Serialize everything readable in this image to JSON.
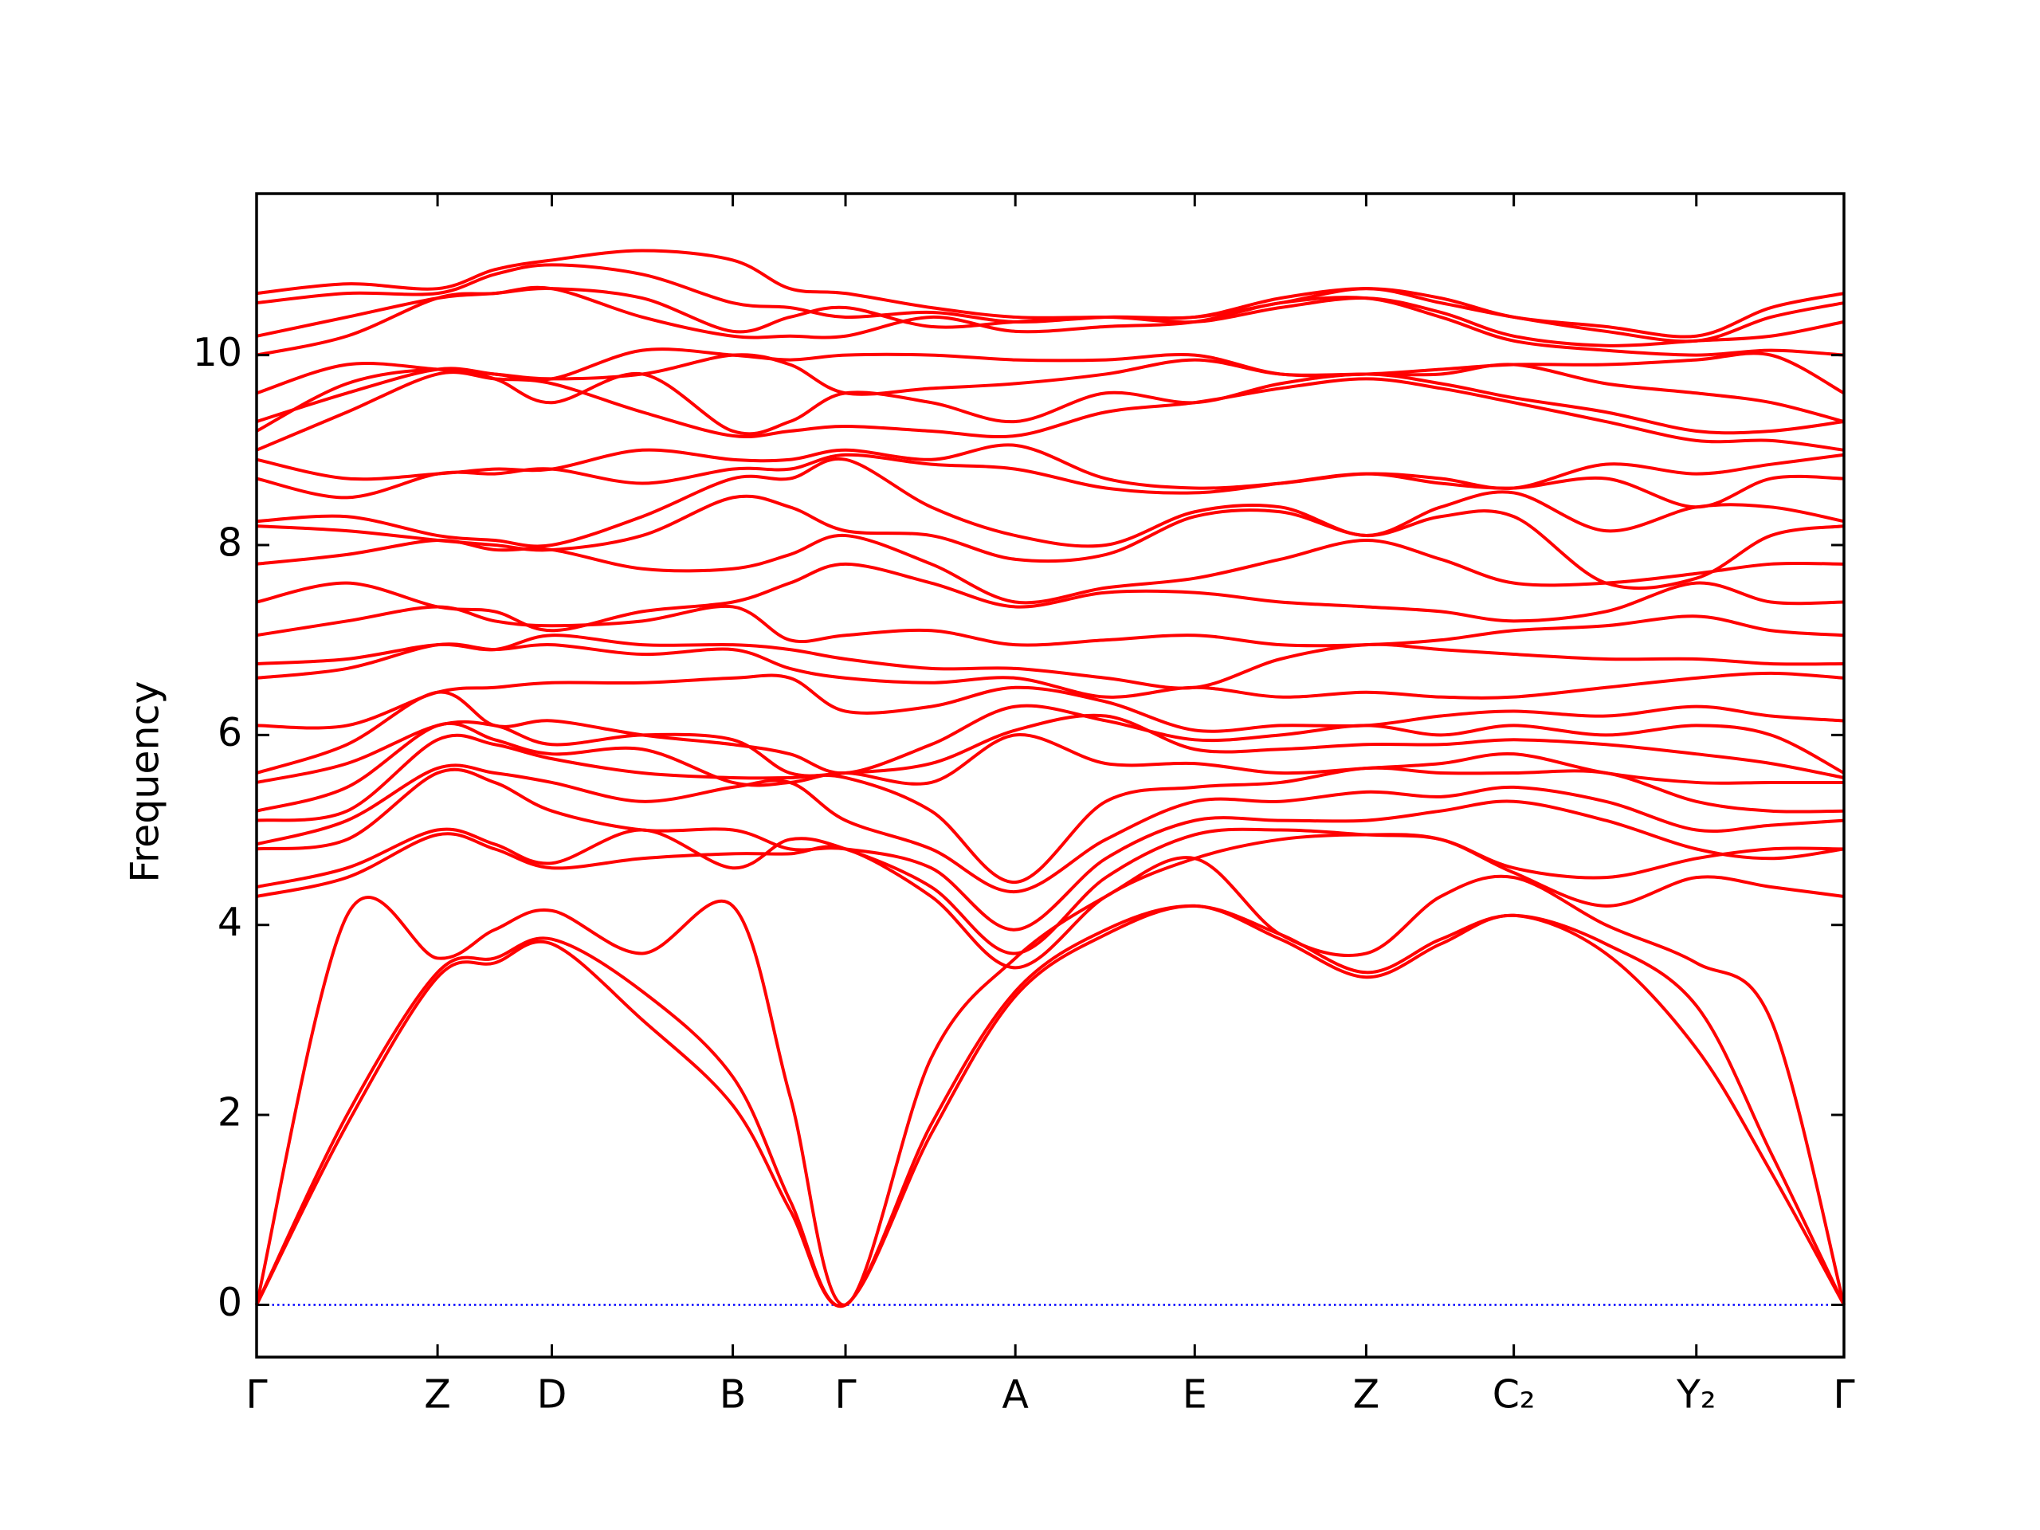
{
  "chart_data": {
    "type": "line",
    "y_label": "Frequency",
    "color": "#ff0000",
    "zero_line": {
      "value": 0,
      "color": "#0000ff"
    },
    "xlim": [
      0,
      1
    ],
    "ylim": [
      -0.55,
      11.7
    ],
    "yticks": [
      0,
      2,
      4,
      6,
      8,
      10
    ],
    "xticks": [
      {
        "value": 0,
        "label": "Γ"
      },
      {
        "value": 0.114,
        "label": "Z"
      },
      {
        "value": 0.186,
        "label": "D"
      },
      {
        "value": 0.3,
        "label": "B"
      },
      {
        "value": 0.371,
        "label": "Γ"
      },
      {
        "value": 0.478,
        "label": "A"
      },
      {
        "value": 0.591,
        "label": "E"
      },
      {
        "value": 0.699,
        "label": "Z"
      },
      {
        "value": 0.792,
        "label": "C₂"
      },
      {
        "value": 0.907,
        "label": "Y₂"
      },
      {
        "value": 1,
        "label": "Γ"
      }
    ],
    "x": [
      0,
      0.057,
      0.114,
      0.15,
      0.186,
      0.243,
      0.3,
      0.336,
      0.371,
      0.425,
      0.478,
      0.535,
      0.591,
      0.645,
      0.699,
      0.746,
      0.792,
      0.85,
      0.907,
      0.954,
      1
    ],
    "series": [
      {
        "values": [
          0,
          1.9,
          3.45,
          3.6,
          3.8,
          3.0,
          2.1,
          1.0,
          0,
          1.8,
          3.25,
          3.9,
          4.2,
          3.85,
          3.45,
          3.8,
          4.1,
          3.7,
          2.7,
          1.4,
          0
        ]
      },
      {
        "values": [
          0,
          2.0,
          3.5,
          3.65,
          3.85,
          3.3,
          2.4,
          1.1,
          0,
          1.9,
          3.3,
          3.95,
          4.2,
          3.9,
          3.5,
          3.85,
          4.1,
          3.8,
          3.15,
          1.6,
          0
        ]
      },
      {
        "values": [
          0,
          4.1,
          3.65,
          3.95,
          4.15,
          3.7,
          4.2,
          2.2,
          0,
          2.6,
          3.65,
          4.3,
          4.7,
          3.9,
          3.7,
          4.3,
          4.5,
          4.0,
          3.6,
          3.0,
          0
        ]
      },
      {
        "values": [
          4.3,
          4.5,
          4.95,
          4.8,
          4.6,
          4.7,
          4.75,
          4.75,
          4.8,
          4.3,
          3.55,
          4.3,
          4.7,
          4.9,
          4.95,
          4.9,
          4.55,
          4.2,
          4.5,
          4.4,
          4.3
        ]
      },
      {
        "values": [
          4.4,
          4.6,
          5.0,
          4.85,
          4.65,
          5.0,
          4.6,
          4.9,
          4.8,
          4.4,
          3.7,
          4.5,
          4.95,
          5.0,
          4.95,
          4.9,
          4.6,
          4.5,
          4.7,
          4.8,
          4.8
        ]
      },
      {
        "values": [
          4.8,
          4.9,
          5.6,
          5.5,
          5.2,
          5.0,
          5.0,
          4.8,
          4.8,
          4.6,
          3.95,
          4.7,
          5.1,
          5.1,
          5.1,
          5.2,
          5.3,
          5.1,
          4.8,
          4.7,
          4.8
        ]
      },
      {
        "values": [
          4.85,
          5.1,
          5.65,
          5.6,
          5.5,
          5.3,
          5.45,
          5.5,
          5.1,
          4.8,
          4.35,
          4.9,
          5.3,
          5.3,
          5.4,
          5.35,
          5.45,
          5.3,
          5.0,
          5.05,
          5.1
        ]
      },
      {
        "values": [
          5.1,
          5.2,
          5.95,
          5.9,
          5.75,
          5.6,
          5.55,
          5.55,
          5.55,
          5.2,
          4.45,
          5.3,
          5.45,
          5.5,
          5.65,
          5.6,
          5.6,
          5.6,
          5.3,
          5.2,
          5.2
        ]
      },
      {
        "values": [
          5.2,
          5.45,
          6.1,
          5.95,
          5.8,
          5.85,
          5.5,
          5.5,
          5.6,
          5.5,
          6.0,
          5.7,
          5.7,
          5.6,
          5.65,
          5.7,
          5.8,
          5.6,
          5.5,
          5.5,
          5.5
        ]
      },
      {
        "values": [
          5.5,
          5.7,
          6.1,
          6.1,
          5.9,
          6.0,
          5.95,
          5.6,
          5.6,
          5.7,
          6.05,
          6.2,
          5.85,
          5.85,
          5.9,
          5.9,
          5.95,
          5.9,
          5.8,
          5.7,
          5.55
        ]
      },
      {
        "values": [
          5.6,
          5.9,
          6.45,
          6.1,
          6.15,
          6.0,
          5.9,
          5.8,
          5.6,
          5.9,
          6.3,
          6.15,
          5.95,
          6.0,
          6.1,
          6.0,
          6.1,
          6.0,
          6.1,
          6.0,
          5.6
        ]
      },
      {
        "values": [
          6.1,
          6.1,
          6.45,
          6.5,
          6.55,
          6.55,
          6.6,
          6.6,
          6.25,
          6.3,
          6.5,
          6.35,
          6.05,
          6.1,
          6.1,
          6.2,
          6.25,
          6.2,
          6.3,
          6.2,
          6.15
        ]
      },
      {
        "values": [
          6.6,
          6.7,
          6.95,
          6.9,
          6.95,
          6.85,
          6.9,
          6.7,
          6.6,
          6.55,
          6.6,
          6.4,
          6.5,
          6.4,
          6.45,
          6.4,
          6.4,
          6.5,
          6.6,
          6.65,
          6.6
        ]
      },
      {
        "values": [
          6.75,
          6.8,
          6.95,
          6.9,
          7.05,
          6.95,
          6.95,
          6.9,
          6.8,
          6.7,
          6.7,
          6.6,
          6.5,
          6.8,
          6.95,
          6.9,
          6.85,
          6.8,
          6.8,
          6.75,
          6.75
        ]
      },
      {
        "values": [
          7.05,
          7.2,
          7.35,
          7.2,
          7.15,
          7.2,
          7.35,
          7.0,
          7.05,
          7.1,
          6.95,
          7.0,
          7.05,
          6.95,
          6.95,
          7.0,
          7.1,
          7.15,
          7.25,
          7.1,
          7.05
        ]
      },
      {
        "values": [
          7.4,
          7.6,
          7.35,
          7.3,
          7.1,
          7.3,
          7.4,
          7.6,
          7.8,
          7.6,
          7.35,
          7.5,
          7.5,
          7.4,
          7.35,
          7.3,
          7.2,
          7.3,
          7.6,
          7.4,
          7.4
        ]
      },
      {
        "values": [
          7.8,
          7.9,
          8.05,
          7.95,
          7.95,
          7.75,
          7.75,
          7.9,
          8.1,
          7.8,
          7.4,
          7.55,
          7.65,
          7.85,
          8.05,
          7.85,
          7.6,
          7.6,
          7.7,
          7.8,
          7.8
        ]
      },
      {
        "values": [
          8.2,
          8.15,
          8.05,
          8.0,
          7.95,
          8.1,
          8.5,
          8.4,
          8.15,
          8.1,
          7.85,
          7.9,
          8.3,
          8.35,
          8.1,
          8.3,
          8.3,
          7.6,
          7.65,
          8.1,
          8.2
        ]
      },
      {
        "values": [
          8.25,
          8.3,
          8.1,
          8.05,
          8.0,
          8.3,
          8.7,
          8.7,
          8.9,
          8.4,
          8.1,
          8.0,
          8.35,
          8.4,
          8.1,
          8.4,
          8.55,
          8.15,
          8.4,
          8.4,
          8.25
        ]
      },
      {
        "values": [
          8.7,
          8.5,
          8.75,
          8.75,
          8.8,
          8.65,
          8.8,
          8.8,
          8.95,
          8.85,
          8.8,
          8.6,
          8.55,
          8.65,
          8.75,
          8.65,
          8.6,
          8.7,
          8.4,
          8.7,
          8.7
        ]
      },
      {
        "values": [
          8.9,
          8.7,
          8.75,
          8.8,
          8.8,
          9.0,
          8.9,
          8.9,
          9.0,
          8.9,
          9.05,
          8.7,
          8.6,
          8.65,
          8.75,
          8.7,
          8.6,
          8.85,
          8.75,
          8.85,
          8.95
        ]
      },
      {
        "values": [
          9.0,
          9.4,
          9.8,
          9.75,
          9.7,
          9.4,
          9.15,
          9.2,
          9.25,
          9.2,
          9.15,
          9.4,
          9.5,
          9.65,
          9.75,
          9.65,
          9.5,
          9.3,
          9.1,
          9.1,
          9.0
        ]
      },
      {
        "values": [
          9.2,
          9.7,
          9.85,
          9.75,
          9.5,
          9.8,
          9.2,
          9.3,
          9.6,
          9.5,
          9.3,
          9.6,
          9.5,
          9.7,
          9.8,
          9.7,
          9.55,
          9.4,
          9.2,
          9.2,
          9.3
        ]
      },
      {
        "values": [
          9.3,
          9.6,
          9.85,
          9.8,
          9.75,
          9.8,
          10.0,
          9.9,
          9.6,
          9.65,
          9.7,
          9.8,
          9.95,
          9.8,
          9.8,
          9.8,
          9.9,
          9.7,
          9.6,
          9.5,
          9.3
        ]
      },
      {
        "values": [
          9.6,
          9.9,
          9.85,
          9.8,
          9.75,
          10.05,
          10.0,
          9.95,
          10.0,
          10.0,
          9.95,
          9.95,
          10.0,
          9.8,
          9.8,
          9.85,
          9.9,
          9.9,
          9.95,
          10.0,
          9.6
        ]
      },
      {
        "values": [
          10.0,
          10.2,
          10.6,
          10.65,
          10.7,
          10.4,
          10.2,
          10.2,
          10.2,
          10.4,
          10.25,
          10.3,
          10.35,
          10.55,
          10.6,
          10.4,
          10.15,
          10.05,
          10.0,
          10.05,
          10.0
        ]
      },
      {
        "values": [
          10.2,
          10.4,
          10.6,
          10.65,
          10.7,
          10.6,
          10.25,
          10.4,
          10.5,
          10.3,
          10.35,
          10.4,
          10.35,
          10.5,
          10.6,
          10.45,
          10.2,
          10.1,
          10.15,
          10.2,
          10.35
        ]
      },
      {
        "values": [
          10.55,
          10.65,
          10.65,
          10.85,
          10.95,
          10.85,
          10.55,
          10.5,
          10.4,
          10.45,
          10.35,
          10.4,
          10.4,
          10.55,
          10.7,
          10.55,
          10.4,
          10.25,
          10.15,
          10.4,
          10.55
        ]
      },
      {
        "values": [
          10.65,
          10.75,
          10.7,
          10.9,
          11.0,
          11.1,
          11.0,
          10.7,
          10.65,
          10.5,
          10.4,
          10.4,
          10.4,
          10.6,
          10.7,
          10.6,
          10.4,
          10.3,
          10.2,
          10.5,
          10.65
        ]
      }
    ]
  }
}
